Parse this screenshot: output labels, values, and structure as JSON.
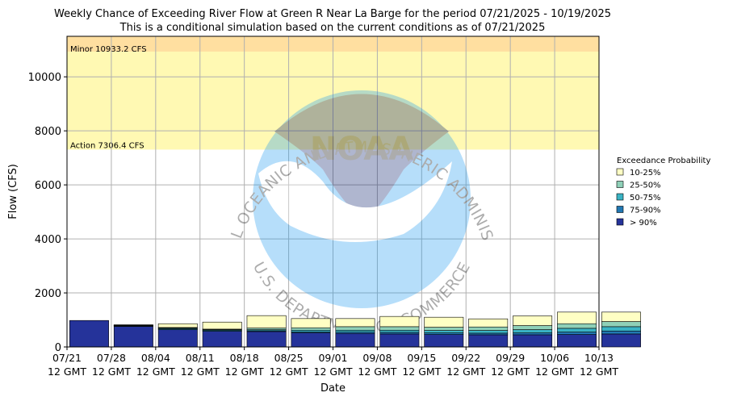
{
  "chart_data": {
    "type": "bar",
    "stacked": true,
    "title": "Weekly Chance of Exceeding River Flow at Green R Near La Barge for the period 07/21/2025 - 10/19/2025",
    "subtitle": "This is a conditional simulation based on the current conditions as of 07/21/2025",
    "xlabel": "Date",
    "ylabel": "Flow (CFS)",
    "ylim": [
      0,
      11500
    ],
    "yticks": [
      0,
      2000,
      4000,
      6000,
      8000,
      10000
    ],
    "grid": true,
    "legend_title": "Exceedance Probability",
    "legend_position": "right",
    "x_ticks": [
      {
        "date": "07/21",
        "time": "12 GMT"
      },
      {
        "date": "07/28",
        "time": "12 GMT"
      },
      {
        "date": "08/04",
        "time": "12 GMT"
      },
      {
        "date": "08/11",
        "time": "12 GMT"
      },
      {
        "date": "08/18",
        "time": "12 GMT"
      },
      {
        "date": "08/25",
        "time": "12 GMT"
      },
      {
        "date": "09/01",
        "time": "12 GMT"
      },
      {
        "date": "09/08",
        "time": "12 GMT"
      },
      {
        "date": "09/15",
        "time": "12 GMT"
      },
      {
        "date": "09/22",
        "time": "12 GMT"
      },
      {
        "date": "09/29",
        "time": "12 GMT"
      },
      {
        "date": "10/06",
        "time": "12 GMT"
      },
      {
        "date": "10/13",
        "time": "12 GMT"
      }
    ],
    "thresholds": [
      {
        "label": "Minor 10933.2 CFS",
        "value": 10933.2,
        "color": "#ffdfa0"
      },
      {
        "label": "Action 7306.4 CFS",
        "value": 7306.4,
        "color": "#fff9b3"
      }
    ],
    "series": [
      {
        "name": "> 90%",
        "color": "#25339a",
        "values": [
          980,
          760,
          640,
          580,
          570,
          520,
          500,
          480,
          460,
          450,
          450,
          460,
          480
        ]
      },
      {
        "name": "75-90%",
        "color": "#2178b3",
        "values": [
          0,
          20,
          30,
          30,
          30,
          40,
          50,
          60,
          60,
          60,
          70,
          90,
          110
        ]
      },
      {
        "name": "50-75%",
        "color": "#3ab3c4",
        "values": [
          0,
          20,
          30,
          30,
          40,
          60,
          70,
          80,
          90,
          100,
          120,
          140,
          160
        ]
      },
      {
        "name": "25-50%",
        "color": "#8fd0b8",
        "values": [
          0,
          10,
          20,
          20,
          60,
          90,
          130,
          130,
          120,
          130,
          150,
          170,
          190
        ]
      },
      {
        "name": "10-25%",
        "color": "#ffffc4",
        "values": [
          0,
          10,
          140,
          260,
          460,
          340,
          300,
          380,
          370,
          300,
          360,
          430,
          350
        ]
      }
    ],
    "watermark": {
      "top_text": "NATIONAL OCEANIC AND ATMOSPHERIC ADMINISTRATION",
      "bottom_text": "U.S. DEPARTMENT OF COMMERCE",
      "logo_text": "NOAA"
    }
  }
}
